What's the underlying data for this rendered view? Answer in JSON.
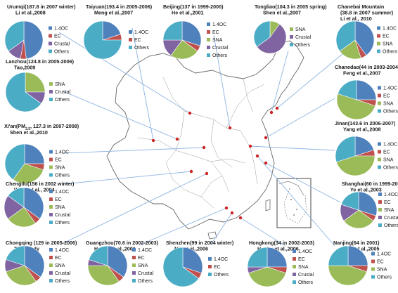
{
  "colors": {
    "OC": "#4f81bd",
    "EC": "#c0504d",
    "SNA": "#9bbb59",
    "Crustal": "#8064a2",
    "Others": "#4bacc6",
    "map_outline": "#666666",
    "leader_line": "#8eb4e3",
    "site_marker": "#cc2222"
  },
  "chart_data": [
    {
      "type": "pie",
      "title": [
        "Urumqi(187.8 in 2007 winter)",
        "Li et al.,2008"
      ],
      "legend": [
        "1.4OC",
        "EC",
        "Crustal",
        "Others"
      ],
      "keys": [
        "OC",
        "EC",
        "Crustal",
        "Others"
      ],
      "values": [
        48,
        5,
        12,
        35
      ]
    },
    {
      "type": "pie",
      "title": [
        "Taiyuan(193.4 in 2005-2006)",
        "Meng et al.,2007"
      ],
      "legend": [
        "1.4OC",
        "EC",
        "Others"
      ],
      "keys": [
        "OC",
        "EC",
        "Others"
      ],
      "values": [
        20,
        5,
        75
      ]
    },
    {
      "type": "pie",
      "title": [
        "Beijing(137 in 1999-2000)",
        "He et al.,2001"
      ],
      "legend": [
        "1.4OC",
        "EC",
        "SNA",
        "Crustal",
        "Others"
      ],
      "keys": [
        "OC",
        "EC",
        "SNA",
        "Crustal",
        "Others"
      ],
      "values": [
        30,
        5,
        25,
        15,
        25
      ]
    },
    {
      "type": "pie",
      "title": [
        "Tongliao(104.3 in 2005 spring)",
        "Shen et al.,2007"
      ],
      "legend": [
        "SNA",
        "Crustal",
        "Others"
      ],
      "keys": [
        "SNA",
        "Crustal",
        "Others"
      ],
      "values": [
        10,
        55,
        35
      ]
    },
    {
      "type": "pie",
      "title": [
        "Chanebai Mountain",
        "(38.8 in 2007 summer)",
        "Li et al.,  2010"
      ],
      "legend": [
        "1.4OC",
        "EC",
        "SNA",
        "Others"
      ],
      "keys": [
        "OC",
        "EC",
        "SNA",
        "Others"
      ],
      "values": [
        40,
        5,
        20,
        35
      ]
    },
    {
      "type": "pie",
      "title": [
        "Lanzhou(124.8 in 2005-2006)",
        "Tao,2009"
      ],
      "legend": [
        "SNA",
        "Crustal",
        "Others"
      ],
      "keys": [
        "SNA",
        "Crustal",
        "Others"
      ],
      "values": [
        25,
        10,
        65
      ]
    },
    {
      "type": "pie",
      "title": [
        "Chanedao(44 in 2003-2004)",
        "Feng et al.,2007"
      ],
      "legend": [
        "1.4OC",
        "EC",
        "SNA",
        "Others"
      ],
      "keys": [
        "OC",
        "EC",
        "SNA",
        "Others"
      ],
      "values": [
        25,
        5,
        50,
        20
      ]
    },
    {
      "type": "pie",
      "title": [
        "Xi'an(PM",
        "2.5",
        ", 127.3 in 2007-2008)",
        "Shen et al.,2010"
      ],
      "legend": [
        "1.4OC",
        "EC",
        "SNA",
        "Others"
      ],
      "keys": [
        "OC",
        "EC",
        "SNA",
        "Others"
      ],
      "values": [
        25,
        5,
        30,
        40
      ]
    },
    {
      "type": "pie",
      "title": [
        "Jinan(143.6 in 2006-2007)",
        "Yang et al.,2008"
      ],
      "legend": [
        "1.4OC",
        "EC",
        "SNA",
        "Others"
      ],
      "keys": [
        "OC",
        "EC",
        "SNA",
        "Others"
      ],
      "values": [
        20,
        5,
        45,
        30
      ]
    },
    {
      "type": "pie",
      "title": [
        "Chengdu(156 in 2002 winter)",
        "Wang et al., 2004"
      ],
      "legend": [
        "1.4OC",
        "EC",
        "SNA",
        "Crustal",
        "Others"
      ],
      "keys": [
        "OC",
        "EC",
        "SNA",
        "Crustal",
        "Others"
      ],
      "values": [
        35,
        5,
        25,
        20,
        15
      ]
    },
    {
      "type": "pie",
      "title": [
        "Shanghai(60 in 1999-2000)",
        "Ye et al.,2003"
      ],
      "legend": [
        "1.4OC",
        "EC",
        "SNA",
        "Crustal",
        "Others"
      ],
      "keys": [
        "OC",
        "EC",
        "SNA",
        "Crustal",
        "Others"
      ],
      "values": [
        30,
        5,
        30,
        15,
        20
      ]
    },
    {
      "type": "pie",
      "title": [
        "Chongqing (129 in 2005-2006)",
        "This study"
      ],
      "legend": [
        "1.4OC",
        "EC",
        "SNA",
        "Crustal",
        "Others"
      ],
      "keys": [
        "OC",
        "EC",
        "SNA",
        "Crustal",
        "Others"
      ],
      "values": [
        35,
        5,
        30,
        10,
        20
      ]
    },
    {
      "type": "pie",
      "title": [
        "Guangzhou(70.6 in 2002-2003)",
        "Hagler et al.,2006"
      ],
      "legend": [
        "1.4OC",
        "EC",
        "SNA",
        "Crustal",
        "Others"
      ],
      "keys": [
        "OC",
        "EC",
        "SNA",
        "Crustal",
        "Others"
      ],
      "values": [
        35,
        5,
        35,
        5,
        20
      ]
    },
    {
      "type": "pie",
      "title": [
        "Shenzhen(99 in 2004 winter)",
        "Niu et al.,2006"
      ],
      "legend": [
        "1.4OC",
        "EC",
        "Others"
      ],
      "keys": [
        "OC",
        "EC",
        "Others"
      ],
      "values": [
        30,
        5,
        65
      ]
    },
    {
      "type": "pie",
      "title": [
        "Hongkong(34 in 2002-2003)",
        "Hagler et al.,2006"
      ],
      "legend": [
        "1.4OC",
        "EC",
        "SNA",
        "Crustal",
        "Others"
      ],
      "keys": [
        "OC",
        "EC",
        "SNA",
        "Crustal",
        "Others"
      ],
      "values": [
        25,
        5,
        40,
        5,
        25
      ]
    },
    {
      "type": "pie",
      "title": [
        "Nanjing(64 in 2001)",
        "Yang et al.,2005"
      ],
      "legend": [
        "1.4OC",
        "EC",
        "SNA",
        "Others"
      ],
      "keys": [
        "OC",
        "EC",
        "SNA",
        "Others"
      ],
      "values": [
        25,
        5,
        45,
        25
      ]
    }
  ]
}
